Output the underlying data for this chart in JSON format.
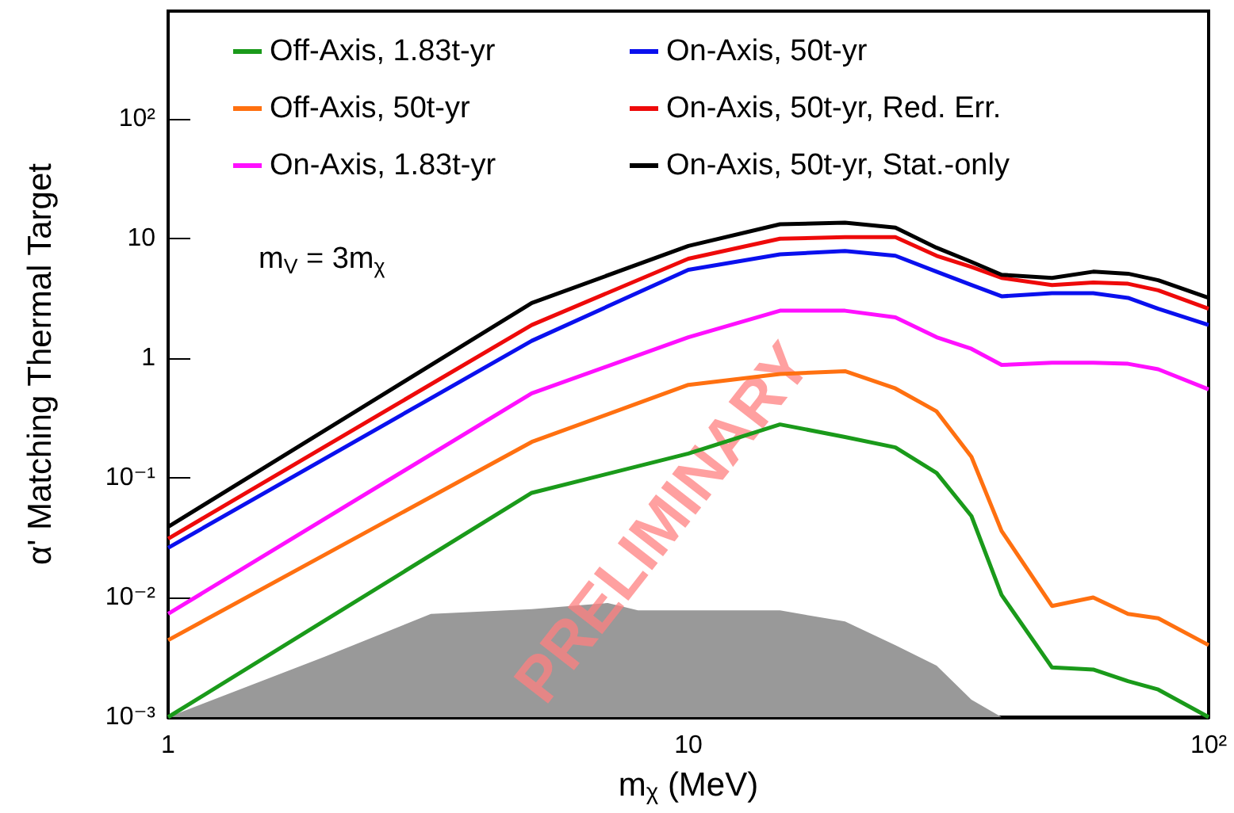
{
  "chart_data": {
    "type": "line",
    "xlabel": "m$_{χ}$ (MeV)",
    "ylabel": "α' Matching Thermal Target",
    "log": "xy",
    "marker": "none",
    "legend": "top",
    "xlim": [
      1,
      100
    ],
    "ylim": [
      0.001,
      800
    ],
    "xticks": [
      1,
      10,
      {
        "value": 100,
        "label": "10²"
      }
    ],
    "yticks": [
      {
        "value": 0.001,
        "label": "10⁻³"
      },
      {
        "value": 0.01,
        "label": "10⁻²"
      },
      {
        "value": 0.1,
        "label": "10⁻¹"
      },
      1,
      10,
      {
        "value": 100,
        "label": "10²"
      }
    ],
    "x": [
      1,
      5,
      10,
      15,
      20,
      25,
      30,
      35,
      40,
      50,
      60,
      70,
      80,
      100
    ],
    "series": [
      {
        "name": "Off-Axis, 1.83t-yr",
        "color": "#1a9a1a",
        "values": [
          0.001,
          0.075,
          0.16,
          0.28,
          0.22,
          0.18,
          0.11,
          0.048,
          0.0105,
          0.0026,
          0.0025,
          0.002,
          0.0017,
          0.001
        ]
      },
      {
        "name": "Off-Axis, 50t-yr",
        "color": "#ff7010",
        "values": [
          0.0044,
          0.2,
          0.6,
          0.74,
          0.78,
          0.56,
          0.36,
          0.15,
          0.036,
          0.0085,
          0.01,
          0.0073,
          0.0067,
          0.004
        ]
      },
      {
        "name": "On-Axis, 1.83t-yr",
        "color": "#ff10ff",
        "values": [
          0.0073,
          0.51,
          1.5,
          2.5,
          2.5,
          2.2,
          1.5,
          1.2,
          0.88,
          0.92,
          0.92,
          0.9,
          0.81,
          0.55
        ]
      },
      {
        "name": "On-Axis, 50t-yr",
        "color": "#0a10ee",
        "values": [
          0.026,
          1.4,
          5.5,
          7.4,
          7.9,
          7.2,
          5.3,
          4.1,
          3.3,
          3.5,
          3.5,
          3.2,
          2.6,
          1.9
        ]
      },
      {
        "name": "On-Axis, 50t-yr, Red. Err.",
        "color": "#ee0a0a",
        "values": [
          0.031,
          1.9,
          6.8,
          10,
          10.3,
          10.3,
          7.2,
          5.8,
          4.7,
          4.1,
          4.3,
          4.2,
          3.7,
          2.6
        ]
      },
      {
        "name": "On-Axis, 50t-yr, Stat.-only",
        "color": "#000000",
        "values": [
          0.039,
          2.9,
          8.7,
          13.2,
          13.6,
          12.4,
          8.4,
          6.4,
          5.0,
          4.7,
          5.3,
          5.1,
          4.5,
          3.2
        ]
      },
      {
        "type": "area",
        "color": "#999999",
        "x": [
          1,
          2,
          3.2,
          5,
          7,
          8,
          10,
          15,
          20,
          25,
          30,
          35,
          40
        ],
        "values": [
          0.001,
          0.0032,
          0.0073,
          0.008,
          0.009,
          0.0078,
          0.0078,
          0.0078,
          0.0063,
          0.004,
          0.0027,
          0.0014,
          0.001
        ]
      }
    ],
    "annotations": [
      "m$_{V}$ = 3m$_{χ}$",
      "PRELIMINARY"
    ]
  }
}
